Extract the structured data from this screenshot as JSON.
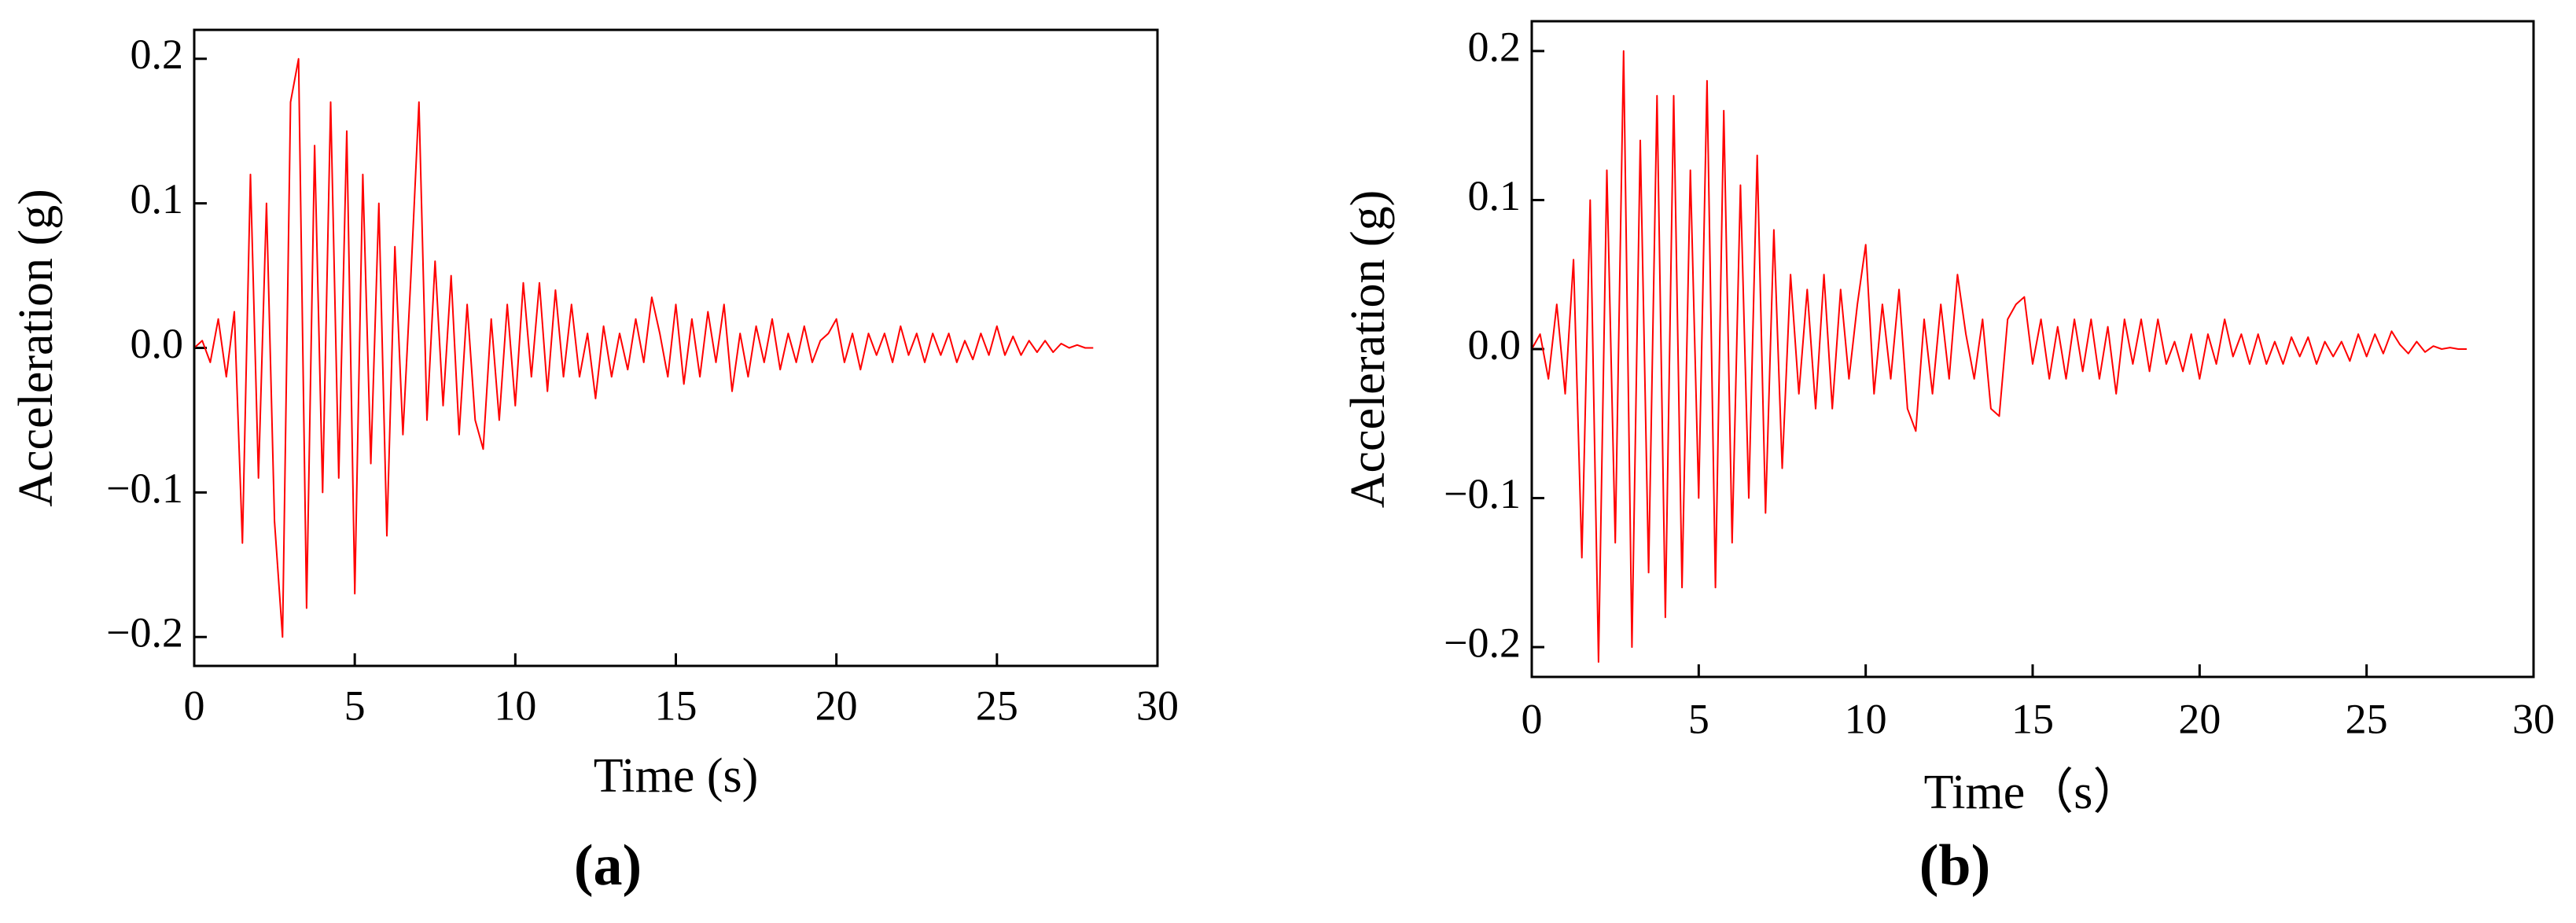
{
  "chart_data": [
    {
      "type": "line",
      "label": "(a)",
      "xlabel": "Time (s)",
      "ylabel": "Acceleration (g)",
      "color": "#ff0000",
      "xlim": [
        0,
        30
      ],
      "xticks": [
        0,
        5,
        10,
        15,
        20,
        25,
        30
      ],
      "ylim": [
        -0.22,
        0.22
      ],
      "yticks": [
        {
          "value": -0.2,
          "label": "−0.2"
        },
        {
          "value": -0.1,
          "label": "−0.1"
        },
        {
          "value": 0,
          "label": "0.0"
        },
        0.1,
        0.2
      ],
      "x": [
        0,
        0.25,
        0.5,
        0.75,
        1,
        1.25,
        1.5,
        1.75,
        2,
        2.25,
        2.5,
        2.75,
        3,
        3.25,
        3.5,
        3.75,
        4,
        4.25,
        4.5,
        4.75,
        5,
        5.25,
        5.5,
        5.75,
        6,
        6.25,
        6.5,
        6.75,
        7,
        7.25,
        7.5,
        7.75,
        8,
        8.25,
        8.5,
        8.75,
        9,
        9.25,
        9.5,
        9.75,
        10,
        10.25,
        10.5,
        10.75,
        11,
        11.25,
        11.5,
        11.75,
        12,
        12.25,
        12.5,
        12.75,
        13,
        13.25,
        13.5,
        13.75,
        14,
        14.25,
        14.5,
        14.75,
        15,
        15.25,
        15.5,
        15.75,
        16,
        16.25,
        16.5,
        16.75,
        17,
        17.25,
        17.5,
        17.75,
        18,
        18.25,
        18.5,
        18.75,
        19,
        19.25,
        19.5,
        19.75,
        20,
        20.25,
        20.5,
        20.75,
        21,
        21.25,
        21.5,
        21.75,
        22,
        22.25,
        22.5,
        22.75,
        23,
        23.25,
        23.5,
        23.75,
        24,
        24.25,
        24.5,
        24.75,
        25,
        25.25,
        25.5,
        25.75,
        26,
        26.25,
        26.5,
        26.75,
        27,
        27.25,
        27.5,
        27.75,
        28
      ],
      "values": [
        0,
        0.005,
        -0.01,
        0.02,
        -0.02,
        0.025,
        -0.135,
        0.12,
        -0.09,
        0.1,
        -0.12,
        -0.2,
        0.17,
        0.2,
        -0.18,
        0.14,
        -0.1,
        0.17,
        -0.09,
        0.15,
        -0.17,
        0.12,
        -0.08,
        0.1,
        -0.13,
        0.07,
        -0.06,
        0.05,
        0.17,
        -0.05,
        0.06,
        -0.04,
        0.05,
        -0.06,
        0.03,
        -0.05,
        -0.07,
        0.02,
        -0.05,
        0.03,
        -0.04,
        0.045,
        -0.02,
        0.045,
        -0.03,
        0.04,
        -0.02,
        0.03,
        -0.02,
        0.01,
        -0.035,
        0.015,
        -0.02,
        0.01,
        -0.015,
        0.02,
        -0.01,
        0.035,
        0.01,
        -0.02,
        0.03,
        -0.025,
        0.02,
        -0.02,
        0.025,
        -0.01,
        0.03,
        -0.03,
        0.01,
        -0.02,
        0.015,
        -0.01,
        0.02,
        -0.015,
        0.01,
        -0.01,
        0.015,
        -0.01,
        0.005,
        0.01,
        0.02,
        -0.01,
        0.01,
        -0.015,
        0.01,
        -0.005,
        0.01,
        -0.01,
        0.015,
        -0.005,
        0.01,
        -0.01,
        0.01,
        -0.005,
        0.01,
        -0.01,
        0.005,
        -0.008,
        0.01,
        -0.005,
        0.015,
        -0.005,
        0.008,
        -0.005,
        0.005,
        -0.003,
        0.005,
        -0.003,
        0.003,
        0,
        0.002,
        0,
        0
      ]
    },
    {
      "type": "line",
      "label": "(b)",
      "xlabel": "Time（s）",
      "ylabel": "Acceleration (g)",
      "color": "#ff0000",
      "xlim": [
        0,
        30
      ],
      "xticks": [
        0,
        5,
        10,
        15,
        20,
        25,
        30
      ],
      "ylim": [
        -0.22,
        0.22
      ],
      "yticks": [
        {
          "value": -0.2,
          "label": "−0.2"
        },
        {
          "value": -0.1,
          "label": "−0.1"
        },
        {
          "value": 0,
          "label": "0.0"
        },
        0.1,
        0.2
      ],
      "x": [
        0,
        0.25,
        0.5,
        0.75,
        1,
        1.25,
        1.5,
        1.75,
        2,
        2.25,
        2.5,
        2.75,
        3,
        3.25,
        3.5,
        3.75,
        4,
        4.25,
        4.5,
        4.75,
        5,
        5.25,
        5.5,
        5.75,
        6,
        6.25,
        6.5,
        6.75,
        7,
        7.25,
        7.5,
        7.75,
        8,
        8.25,
        8.5,
        8.75,
        9,
        9.25,
        9.5,
        9.75,
        10,
        10.25,
        10.5,
        10.75,
        11,
        11.25,
        11.5,
        11.75,
        12,
        12.25,
        12.5,
        12.75,
        13,
        13.25,
        13.5,
        13.75,
        14,
        14.25,
        14.5,
        14.75,
        15,
        15.25,
        15.5,
        15.75,
        16,
        16.25,
        16.5,
        16.75,
        17,
        17.25,
        17.5,
        17.75,
        18,
        18.25,
        18.5,
        18.75,
        19,
        19.25,
        19.5,
        19.75,
        20,
        20.25,
        20.5,
        20.75,
        21,
        21.25,
        21.5,
        21.75,
        22,
        22.25,
        22.5,
        22.75,
        23,
        23.25,
        23.5,
        23.75,
        24,
        24.25,
        24.5,
        24.75,
        25,
        25.25,
        25.5,
        25.75,
        26,
        26.25,
        26.5,
        26.75,
        27,
        27.25,
        27.5,
        27.75,
        28
      ],
      "values": [
        0,
        0.01,
        -0.02,
        0.03,
        -0.03,
        0.06,
        -0.14,
        0.1,
        -0.21,
        0.12,
        -0.13,
        0.2,
        -0.2,
        0.14,
        -0.15,
        0.17,
        -0.18,
        0.17,
        -0.16,
        0.12,
        -0.1,
        0.18,
        -0.16,
        0.16,
        -0.13,
        0.11,
        -0.1,
        0.13,
        -0.11,
        0.08,
        -0.08,
        0.05,
        -0.03,
        0.04,
        -0.04,
        0.05,
        -0.04,
        0.04,
        -0.02,
        0.03,
        0.07,
        -0.03,
        0.03,
        -0.02,
        0.04,
        -0.04,
        -0.055,
        0.02,
        -0.03,
        0.03,
        -0.02,
        0.05,
        0.01,
        -0.02,
        0.02,
        -0.04,
        -0.045,
        0.02,
        0.03,
        0.035,
        -0.01,
        0.02,
        -0.02,
        0.015,
        -0.02,
        0.02,
        -0.015,
        0.02,
        -0.02,
        0.015,
        -0.03,
        0.02,
        -0.01,
        0.02,
        -0.015,
        0.02,
        -0.01,
        0.005,
        -0.015,
        0.01,
        -0.02,
        0.01,
        -0.01,
        0.02,
        -0.005,
        0.01,
        -0.01,
        0.01,
        -0.01,
        0.005,
        -0.01,
        0.008,
        -0.005,
        0.008,
        -0.01,
        0.005,
        -0.005,
        0.005,
        -0.008,
        0.01,
        -0.005,
        0.01,
        -0.003,
        0.012,
        0.003,
        -0.003,
        0.005,
        -0.002,
        0.002,
        0,
        0.001,
        0,
        0
      ]
    }
  ]
}
